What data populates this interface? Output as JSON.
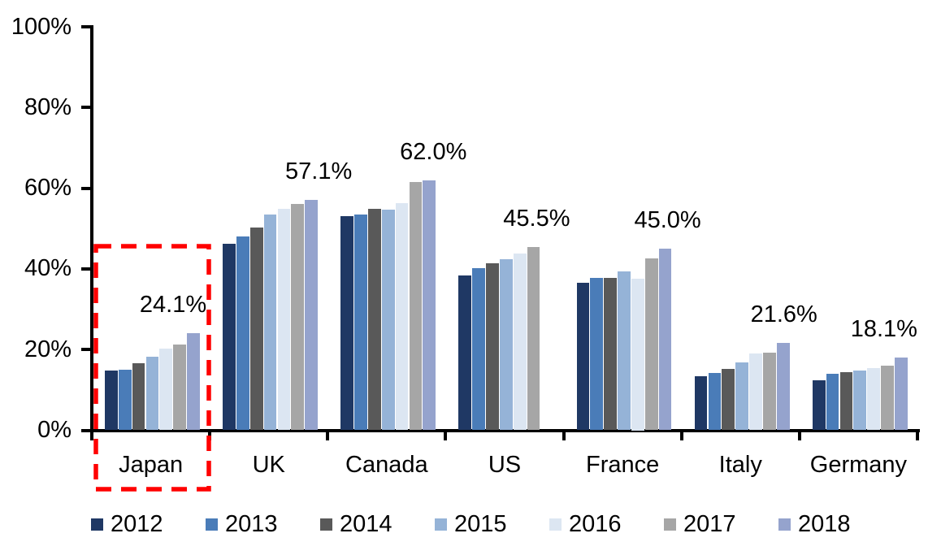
{
  "chart_data": {
    "type": "bar",
    "title": "",
    "xlabel": "",
    "ylabel": "",
    "categories": [
      "Japan",
      "UK",
      "Canada",
      "US",
      "France",
      "Italy",
      "Germany"
    ],
    "series": [
      {
        "name": "2012",
        "color": "#1F3864",
        "values": [
          14.8,
          46.3,
          53.0,
          38.3,
          36.6,
          13.3,
          12.4
        ]
      },
      {
        "name": "2013",
        "color": "#4A7CB8",
        "values": [
          15.0,
          48.0,
          53.5,
          40.2,
          37.8,
          14.1,
          14.0
        ]
      },
      {
        "name": "2014",
        "color": "#595959",
        "values": [
          16.6,
          50.3,
          54.9,
          41.4,
          37.8,
          15.2,
          14.4
        ]
      },
      {
        "name": "2015",
        "color": "#95B3D7",
        "values": [
          18.3,
          53.4,
          54.6,
          42.4,
          39.4,
          16.8,
          14.9
        ]
      },
      {
        "name": "2016",
        "color": "#DCE6F2",
        "values": [
          20.2,
          54.9,
          56.2,
          43.8,
          37.5,
          19.0,
          15.5
        ]
      },
      {
        "name": "2017",
        "color": "#A6A6A6",
        "values": [
          21.3,
          56.0,
          61.6,
          45.5,
          42.5,
          19.2,
          16.0
        ]
      },
      {
        "name": "2018",
        "color": "#95A3CD",
        "values": [
          24.1,
          57.1,
          62.0,
          null,
          45.0,
          21.6,
          18.1
        ]
      }
    ],
    "value_labels": [
      "24.1%",
      "57.1%",
      "62.0%",
      "45.5%",
      "45.0%",
      "21.6%",
      "18.1%"
    ],
    "y_ticks": [
      "0%",
      "20%",
      "40%",
      "60%",
      "80%",
      "100%"
    ],
    "ylim": [
      0,
      100
    ],
    "grid": false,
    "legend_position": "bottom",
    "annotation": {
      "type": "dashed-box",
      "target_category": "Japan",
      "color": "#FF0000"
    },
    "axis_color": "#000000",
    "background_color": "#FFFFFF"
  }
}
